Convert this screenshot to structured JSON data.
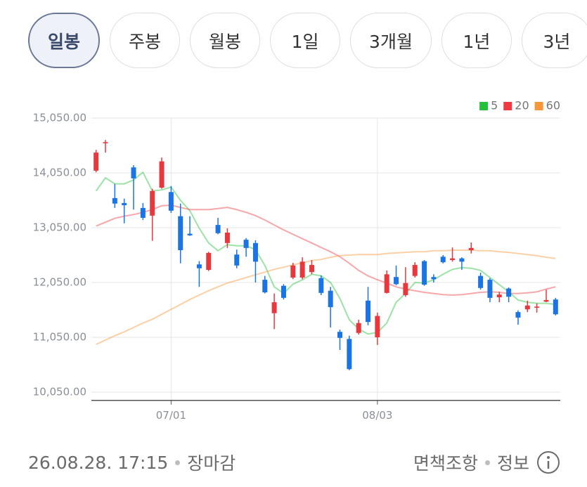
{
  "tabs": [
    {
      "label": "일봉",
      "selected": true
    },
    {
      "label": "주봉",
      "selected": false
    },
    {
      "label": "월봉",
      "selected": false
    },
    {
      "label": "1일",
      "selected": false
    },
    {
      "label": "3개월",
      "selected": false
    },
    {
      "label": "1년",
      "selected": false
    },
    {
      "label": "3년",
      "selected": false
    }
  ],
  "chart_data": {
    "type": "candlestick",
    "categories": [
      null,
      null,
      null,
      null,
      null,
      null,
      null,
      null,
      "07/01",
      null,
      null,
      null,
      null,
      null,
      null,
      null,
      null,
      null,
      null,
      null,
      null,
      null,
      null,
      null,
      null,
      null,
      null,
      null,
      null,
      null,
      "08/03",
      null,
      null,
      null,
      null,
      null,
      null,
      null,
      null,
      null,
      null,
      null,
      null,
      null,
      null,
      null,
      null,
      null,
      null,
      null
    ],
    "open": [
      14090,
      14590,
      13590,
      13500,
      14150,
      13410,
      13270,
      13780,
      13700,
      13260,
      12940,
      12380,
      12280,
      13100,
      12770,
      12560,
      12830,
      12770,
      12100,
      11490,
      11990,
      12140,
      12140,
      12240,
      12130,
      11900,
      11150,
      11020,
      11130,
      11720,
      11050,
      11860,
      12150,
      11820,
      12170,
      12440,
      12150,
      12520,
      12460,
      12490,
      12640,
      12170,
      12100,
      11780,
      11940,
      11510,
      11560,
      11590,
      11700,
      11740
    ],
    "high": [
      14470,
      14650,
      13850,
      13580,
      14190,
      13500,
      13760,
      14330,
      13810,
      13490,
      13260,
      12440,
      12610,
      13230,
      13040,
      12650,
      12860,
      12820,
      12170,
      11850,
      12020,
      12410,
      12510,
      12460,
      12180,
      11970,
      11190,
      11080,
      11370,
      11970,
      11500,
      12270,
      12360,
      12330,
      12420,
      12460,
      12200,
      12550,
      12690,
      12510,
      12780,
      12230,
      12130,
      11880,
      11960,
      11540,
      11720,
      11670,
      11920,
      11770
    ],
    "low": [
      14060,
      14420,
      13410,
      13130,
      13380,
      13190,
      12810,
      13760,
      13320,
      12400,
      12900,
      11970,
      12260,
      12930,
      12680,
      12310,
      12520,
      12050,
      11850,
      11200,
      11740,
      12110,
      12110,
      12200,
      11820,
      11230,
      10820,
      10450,
      11100,
      11270,
      10910,
      11850,
      12000,
      11790,
      12140,
      11990,
      12050,
      12400,
      12430,
      12280,
      12580,
      11920,
      11690,
      11690,
      11690,
      11280,
      11510,
      11500,
      11690,
      11450
    ],
    "close": [
      14420,
      14610,
      13490,
      13460,
      13950,
      13230,
      13720,
      14260,
      13360,
      12640,
      12910,
      12310,
      12590,
      12950,
      12960,
      12360,
      12680,
      12430,
      11870,
      11690,
      11770,
      12360,
      12430,
      12370,
      11860,
      11600,
      11040,
      10470,
      11310,
      11330,
      11440,
      12200,
      12020,
      12040,
      12370,
      12010,
      12110,
      12420,
      12490,
      12430,
      12680,
      11950,
      11770,
      11830,
      11790,
      11410,
      11630,
      11610,
      11730,
      11470
    ],
    "up_color": "#e8383d",
    "down_color": "#1b74e4",
    "series": [
      {
        "name": "5",
        "color": "#22c03c",
        "values": [
          13720,
          13960,
          13850,
          13850,
          13920,
          14060,
          13720,
          13740,
          13790,
          13550,
          13360,
          13040,
          12770,
          12630,
          12740,
          12720,
          12720,
          12650,
          12360,
          11970,
          11850,
          12020,
          12100,
          12200,
          12170,
          12050,
          11760,
          11370,
          11200,
          11110,
          11140,
          11310,
          11690,
          11850,
          12050,
          12040,
          12100,
          12200,
          12290,
          12320,
          12310,
          12270,
          12140,
          12010,
          11880,
          11730,
          11690,
          11670,
          11670,
          11650
        ]
      },
      {
        "name": "20",
        "color": "#ee3b43",
        "values": [
          13080,
          13150,
          13220,
          13260,
          13290,
          13330,
          13380,
          13450,
          13460,
          13420,
          13380,
          13380,
          13380,
          13400,
          13420,
          13380,
          13330,
          13270,
          13190,
          13100,
          13010,
          12930,
          12850,
          12770,
          12690,
          12610,
          12520,
          12400,
          12270,
          12170,
          12100,
          12040,
          11970,
          11930,
          11900,
          11870,
          11850,
          11830,
          11820,
          11830,
          11850,
          11870,
          11880,
          11870,
          11850,
          11850,
          11860,
          11880,
          11930,
          11970
        ]
      },
      {
        "name": "60",
        "color": "#f7973a",
        "values": [
          10920,
          11000,
          11080,
          11150,
          11230,
          11310,
          11380,
          11470,
          11560,
          11650,
          11740,
          11820,
          11900,
          11970,
          12040,
          12090,
          12140,
          12190,
          12240,
          12290,
          12330,
          12370,
          12410,
          12450,
          12470,
          12510,
          12540,
          12550,
          12560,
          12560,
          12560,
          12580,
          12590,
          12600,
          12610,
          12610,
          12630,
          12630,
          12640,
          12640,
          12640,
          12630,
          12630,
          12610,
          12600,
          12580,
          12560,
          12540,
          12510,
          12490
        ]
      }
    ],
    "ylim": [
      9900,
      15300
    ],
    "yticks": [
      {
        "value": 10050,
        "label": "10,050.00"
      },
      {
        "value": 11050,
        "label": "11,050.00"
      },
      {
        "value": 12050,
        "label": "12,050.00"
      },
      {
        "value": 13050,
        "label": "13,050.00"
      },
      {
        "value": 14050,
        "label": "14,050.00"
      },
      {
        "value": 15050,
        "label": "15,050.00"
      }
    ],
    "grid": true,
    "legend": "top-right"
  },
  "footer": {
    "timestamp": "26.08.28. 17:15",
    "status": "장마감",
    "disclaimer": "면책조항",
    "info": "정보"
  }
}
